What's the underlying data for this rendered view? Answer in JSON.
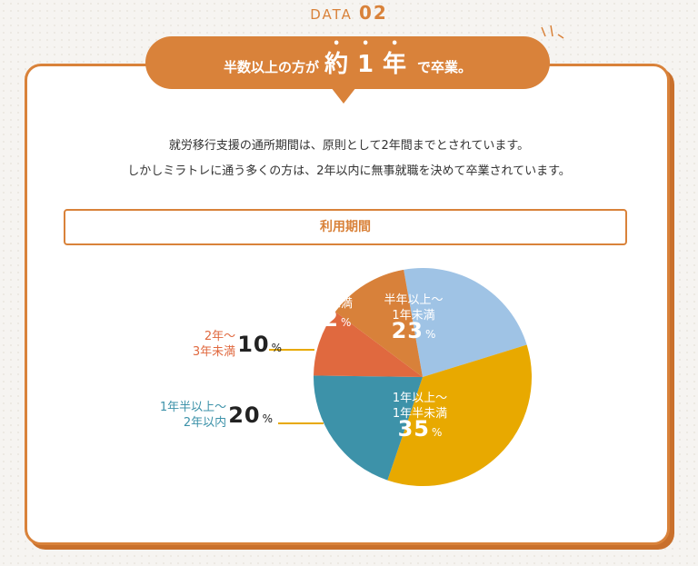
{
  "header": {
    "label": "DATA",
    "number": "02"
  },
  "banner": {
    "pre": "半数以上の方が",
    "emph": "約1年",
    "post": "で卒業。"
  },
  "description": [
    "就労移行支援の通所期間は、原則として2年間までとされています。",
    "しかしミラトレに通う多くの方は、2年以内に無事就職を決めて卒業されています。"
  ],
  "chart_data": {
    "type": "pie",
    "title": "利用期間",
    "categories": [
      "半年以上〜\n1年未満",
      "1年以上〜\n1年半未満",
      "1年半以上〜\n2年以内",
      "2年〜\n3年未満",
      "半年未満"
    ],
    "values": [
      23,
      35,
      20,
      10,
      12
    ],
    "unit": "%",
    "colors": [
      "#9fc3e5",
      "#e8a900",
      "#3d92a9",
      "#e0693f",
      "#d8813a"
    ]
  }
}
